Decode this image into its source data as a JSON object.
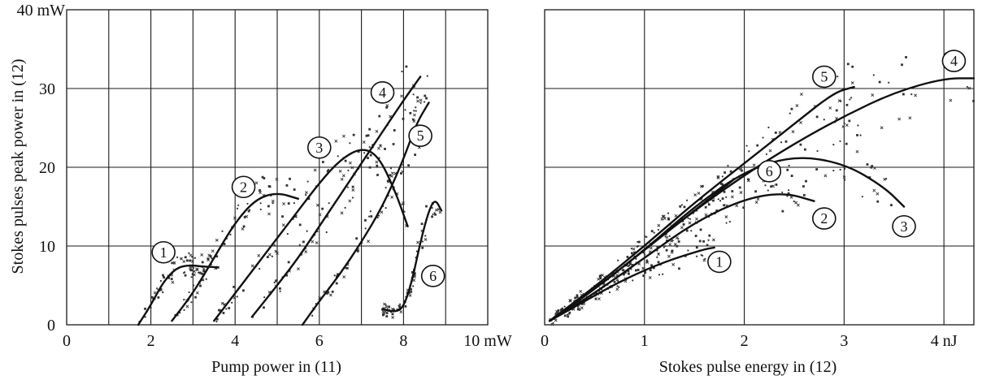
{
  "colors": {
    "ink": "#111111",
    "grid": "#1a1a1a",
    "scatter": "#333333",
    "background": "#ffffff"
  },
  "chart_data": [
    {
      "type": "scatter",
      "xlabel": "Pump power in (11)",
      "ylabel": "Stokes pulses peak power in (12)",
      "xlim": [
        0,
        10
      ],
      "ylim": [
        0,
        40
      ],
      "x_ticks": [
        "0",
        "2",
        "4",
        "6",
        "8",
        "10 mW"
      ],
      "y_ticks": [
        "0",
        "10",
        "20",
        "30",
        "40 mW"
      ],
      "grid": true,
      "series": [
        {
          "name": "1",
          "x": [
            1.7,
            2.0,
            2.3,
            2.6,
            2.9,
            3.2,
            3.6
          ],
          "y": [
            0,
            2.5,
            5.5,
            7.2,
            7.6,
            7.4,
            7.3
          ],
          "label_at": [
            2.3,
            9.2
          ]
        },
        {
          "name": "2",
          "x": [
            2.5,
            3.0,
            3.5,
            4.0,
            4.5,
            5.0,
            5.5
          ],
          "y": [
            0.5,
            4,
            8.5,
            13,
            16,
            16.8,
            16.0
          ],
          "label_at": [
            4.2,
            17.5
          ]
        },
        {
          "name": "3",
          "x": [
            3.5,
            4.0,
            4.5,
            5.0,
            5.5,
            6.0,
            6.5,
            7.0,
            7.4,
            7.8,
            8.1
          ],
          "y": [
            0.5,
            4,
            7.5,
            11,
            14.5,
            18,
            21,
            22.5,
            21.5,
            17,
            12.5
          ],
          "label_at": [
            6.0,
            22.5
          ]
        },
        {
          "name": "4",
          "x": [
            4.4,
            5.0,
            5.5,
            6.0,
            6.5,
            7.0,
            7.5,
            8.0,
            8.4
          ],
          "y": [
            1.0,
            5.0,
            8.5,
            12.5,
            16.5,
            20.5,
            24.5,
            28.5,
            31.5
          ],
          "label_at": [
            7.5,
            29.5
          ]
        },
        {
          "name": "5",
          "x": [
            5.6,
            6.0,
            6.5,
            7.0,
            7.5,
            8.0,
            8.3,
            8.6
          ],
          "y": [
            0,
            3,
            6.5,
            10.5,
            15,
            21,
            25.5,
            28.2
          ],
          "label_at": [
            8.4,
            24.0
          ]
        },
        {
          "name": "6",
          "x": [
            7.5,
            7.8,
            8.0,
            8.2,
            8.4,
            8.6,
            8.75,
            8.9
          ],
          "y": [
            2,
            1.6,
            2.2,
            5.5,
            10.5,
            14.5,
            16.0,
            14.5
          ],
          "label_at": [
            8.7,
            6.2
          ]
        }
      ]
    },
    {
      "type": "scatter",
      "xlabel": "Stokes pulse energy in (12)",
      "ylabel": "",
      "xlim": [
        0,
        4.3
      ],
      "ylim": [
        0,
        40
      ],
      "x_ticks": [
        "0",
        "1",
        "2",
        "3",
        "4 nJ"
      ],
      "y_ticks": [],
      "grid": true,
      "series": [
        {
          "name": "1",
          "x": [
            0.05,
            0.4,
            0.8,
            1.2,
            1.6,
            1.7
          ],
          "y": [
            0.5,
            3.0,
            5.8,
            8.0,
            9.6,
            9.8
          ],
          "label_at": [
            1.75,
            8.0
          ]
        },
        {
          "name": "2",
          "x": [
            0.05,
            0.5,
            1.0,
            1.5,
            2.0,
            2.4,
            2.7
          ],
          "y": [
            0.5,
            4.0,
            8.5,
            13.0,
            16.0,
            16.8,
            15.7
          ],
          "label_at": [
            2.8,
            13.5
          ]
        },
        {
          "name": "3",
          "x": [
            0.05,
            0.5,
            1.0,
            1.5,
            2.0,
            2.5,
            3.0,
            3.4,
            3.6
          ],
          "y": [
            0.5,
            4.5,
            9.5,
            15.0,
            19.5,
            21.5,
            20.5,
            17.5,
            15.0
          ],
          "label_at": [
            3.6,
            12.5
          ]
        },
        {
          "name": "4",
          "x": [
            0.05,
            0.5,
            1.0,
            1.5,
            2.0,
            2.5,
            3.0,
            3.5,
            4.0,
            4.3
          ],
          "y": [
            0.5,
            4.5,
            9.5,
            14.5,
            19.0,
            23.0,
            26.5,
            29.5,
            31.3,
            31.3
          ],
          "label_at": [
            4.1,
            33.5
          ]
        },
        {
          "name": "5",
          "x": [
            0.05,
            0.5,
            1.0,
            1.5,
            2.0,
            2.5,
            2.9,
            3.1
          ],
          "y": [
            0.5,
            4.8,
            10.0,
            15.5,
            20.5,
            25.5,
            29.5,
            30.2
          ],
          "label_at": [
            2.8,
            31.5
          ]
        },
        {
          "name": "6",
          "x": [
            0.05,
            0.5,
            1.0,
            1.5,
            1.9
          ],
          "y": [
            0.5,
            4.5,
            9.5,
            14.5,
            18.5
          ],
          "label_at": [
            2.25,
            19.5
          ]
        }
      ]
    }
  ]
}
